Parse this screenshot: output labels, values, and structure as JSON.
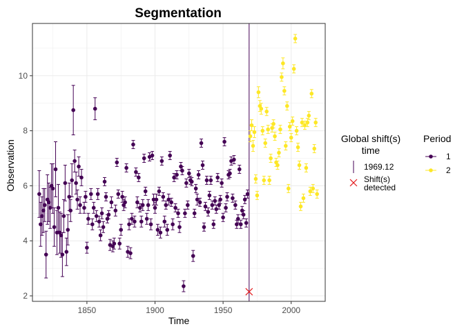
{
  "chart_data": {
    "type": "scatter",
    "title": "Segmentation",
    "xlabel": "Time",
    "ylabel": "Observation",
    "xlim": [
      1810,
      2025
    ],
    "ylim": [
      1.8,
      11.9
    ],
    "x_ticks": [
      1850,
      1900,
      1950,
      2000
    ],
    "y_ticks": [
      2,
      4,
      6,
      8,
      10
    ],
    "grid": true,
    "colors": {
      "period_1": "#440154",
      "period_2": "#FDE725",
      "shift_line": "#440154",
      "shift_marker": "#E31A1C"
    },
    "shift": {
      "time": 1969.12,
      "y": 2.15
    },
    "legend": {
      "shift_title": [
        "Global shift(s)",
        "time"
      ],
      "shift_line_label": "1969.12",
      "shift_marker_label": [
        "Shift(s)",
        "detected"
      ],
      "period_title": "Period",
      "period_labels": [
        "1",
        "2"
      ]
    },
    "series": [
      {
        "name": "1",
        "points": [
          [
            1815,
            5.7,
            0.85
          ],
          [
            1816,
            4.6,
            0.8
          ],
          [
            1817,
            4.9,
            0.7
          ],
          [
            1818,
            5.1,
            0.8
          ],
          [
            1819,
            5.3,
            0.6
          ],
          [
            1820,
            3.5,
            0.85
          ],
          [
            1821,
            5.5,
            0.9
          ],
          [
            1822,
            5.4,
            0.7
          ],
          [
            1823,
            5.2,
            0.75
          ],
          [
            1824,
            6.0,
            0.8
          ],
          [
            1825,
            5.9,
            0.9
          ],
          [
            1826,
            4.5,
            0.7
          ],
          [
            1827,
            6.6,
            1.0
          ],
          [
            1828,
            4.3,
            0.8
          ],
          [
            1829,
            5.2,
            0.85
          ],
          [
            1830,
            4.3,
            0.75
          ],
          [
            1831,
            4.2,
            0.8
          ],
          [
            1832,
            3.5,
            0.8
          ],
          [
            1833,
            4.9,
            0.6
          ],
          [
            1834,
            6.1,
            0.65
          ],
          [
            1835,
            3.6,
            0.5
          ],
          [
            1836,
            4.4,
            0.55
          ],
          [
            1837,
            5.6,
            0.5
          ],
          [
            1838,
            5.1,
            0.4
          ],
          [
            1839,
            6.2,
            0.6
          ],
          [
            1840,
            8.75,
            0.9
          ],
          [
            1841,
            6.9,
            0.4
          ],
          [
            1842,
            6.1,
            0.4
          ],
          [
            1843,
            5.5,
            0.35
          ],
          [
            1844,
            6.7,
            0.35
          ],
          [
            1845,
            5.3,
            0.3
          ],
          [
            1846,
            6.3,
            0.3
          ],
          [
            1848,
            5.2,
            0.2
          ],
          [
            1849,
            5.6,
            0.2
          ],
          [
            1850,
            3.75,
            0.2
          ],
          [
            1851,
            4.8,
            0.2
          ],
          [
            1853,
            5.7,
            0.2
          ],
          [
            1854,
            4.6,
            0.2
          ],
          [
            1855,
            5.2,
            0.2
          ],
          [
            1856,
            8.8,
            0.4
          ],
          [
            1857,
            4.9,
            0.2
          ],
          [
            1858,
            5.7,
            0.2
          ],
          [
            1859,
            4.7,
            0.2
          ],
          [
            1860,
            4.2,
            0.2
          ],
          [
            1861,
            5.0,
            0.2
          ],
          [
            1862,
            4.5,
            0.2
          ],
          [
            1863,
            6.15,
            0.15
          ],
          [
            1864,
            5.6,
            0.15
          ],
          [
            1865,
            4.8,
            0.15
          ],
          [
            1866,
            4.95,
            0.15
          ],
          [
            1867,
            3.85,
            0.2
          ],
          [
            1868,
            5.4,
            0.2
          ],
          [
            1869,
            3.8,
            0.2
          ],
          [
            1870,
            3.9,
            0.2
          ],
          [
            1871,
            5.1,
            0.2
          ],
          [
            1872,
            6.85,
            0.15
          ],
          [
            1873,
            5.7,
            0.15
          ],
          [
            1874,
            3.9,
            0.2
          ],
          [
            1875,
            4.4,
            0.2
          ],
          [
            1876,
            5.6,
            0.2
          ],
          [
            1877,
            5.3,
            0.2
          ],
          [
            1878,
            5.4,
            0.2
          ],
          [
            1879,
            6.65,
            0.15
          ],
          [
            1880,
            3.6,
            0.2
          ],
          [
            1881,
            4.6,
            0.2
          ],
          [
            1882,
            3.55,
            0.2
          ],
          [
            1883,
            4.8,
            0.2
          ],
          [
            1884,
            7.5,
            0.15
          ],
          [
            1885,
            4.7,
            0.2
          ],
          [
            1886,
            6.5,
            0.15
          ],
          [
            1887,
            5.4,
            0.2
          ],
          [
            1888,
            6.3,
            0.15
          ],
          [
            1889,
            5.2,
            0.15
          ],
          [
            1890,
            4.7,
            0.2
          ],
          [
            1891,
            5.3,
            0.2
          ],
          [
            1892,
            7.0,
            0.15
          ],
          [
            1893,
            5.8,
            0.15
          ],
          [
            1894,
            4.8,
            0.2
          ],
          [
            1895,
            5.3,
            0.2
          ],
          [
            1896,
            7.05,
            0.15
          ],
          [
            1897,
            4.6,
            0.2
          ],
          [
            1898,
            7.1,
            0.15
          ],
          [
            1899,
            5.5,
            0.2
          ],
          [
            1900,
            5.2,
            0.2
          ],
          [
            1901,
            5.5,
            0.2
          ],
          [
            1902,
            4.4,
            0.2
          ],
          [
            1903,
            5.8,
            0.15
          ],
          [
            1904,
            4.3,
            0.2
          ],
          [
            1905,
            6.9,
            0.15
          ],
          [
            1906,
            5.6,
            0.15
          ],
          [
            1907,
            4.7,
            0.2
          ],
          [
            1908,
            5.3,
            0.15
          ],
          [
            1909,
            4.4,
            0.2
          ],
          [
            1910,
            5.5,
            0.2
          ],
          [
            1911,
            7.1,
            0.15
          ],
          [
            1912,
            5.4,
            0.15
          ],
          [
            1913,
            4.6,
            0.2
          ],
          [
            1914,
            6.3,
            0.15
          ],
          [
            1915,
            5.2,
            0.15
          ],
          [
            1916,
            6.4,
            0.15
          ],
          [
            1917,
            5.0,
            0.15
          ],
          [
            1918,
            4.5,
            0.2
          ],
          [
            1919,
            6.7,
            0.15
          ],
          [
            1920,
            6.55,
            0.15
          ],
          [
            1921,
            2.35,
            0.2
          ],
          [
            1922,
            5.0,
            0.15
          ],
          [
            1923,
            6.1,
            0.15
          ],
          [
            1924,
            5.3,
            0.15
          ],
          [
            1925,
            6.45,
            0.15
          ],
          [
            1926,
            6.2,
            0.15
          ],
          [
            1927,
            6.15,
            0.15
          ],
          [
            1928,
            3.45,
            0.2
          ],
          [
            1929,
            5.0,
            0.15
          ],
          [
            1930,
            5.9,
            0.15
          ],
          [
            1931,
            5.5,
            0.2
          ],
          [
            1932,
            6.4,
            0.15
          ],
          [
            1933,
            5.4,
            0.15
          ],
          [
            1934,
            7.55,
            0.15
          ],
          [
            1935,
            6.75,
            0.15
          ],
          [
            1936,
            4.5,
            0.15
          ],
          [
            1937,
            5.25,
            0.15
          ],
          [
            1938,
            6.2,
            0.15
          ],
          [
            1939,
            5.05,
            0.15
          ],
          [
            1940,
            5.65,
            0.15
          ],
          [
            1941,
            6.2,
            0.15
          ],
          [
            1942,
            5.3,
            0.15
          ],
          [
            1943,
            4.6,
            0.15
          ],
          [
            1944,
            5.45,
            0.15
          ],
          [
            1945,
            5.15,
            0.15
          ],
          [
            1946,
            6.3,
            0.15
          ],
          [
            1947,
            5.3,
            0.15
          ],
          [
            1948,
            5.5,
            0.15
          ],
          [
            1949,
            6.1,
            0.15
          ],
          [
            1950,
            4.85,
            0.15
          ],
          [
            1951,
            7.6,
            0.15
          ],
          [
            1952,
            5.2,
            0.15
          ],
          [
            1953,
            5.6,
            0.15
          ],
          [
            1954,
            6.4,
            0.15
          ],
          [
            1955,
            6.45,
            0.15
          ],
          [
            1956,
            6.9,
            0.15
          ],
          [
            1957,
            5.55,
            0.15
          ],
          [
            1958,
            6.95,
            0.15
          ],
          [
            1959,
            5.3,
            0.15
          ],
          [
            1960,
            4.6,
            0.15
          ],
          [
            1961,
            4.8,
            0.15
          ],
          [
            1962,
            6.6,
            0.15
          ],
          [
            1963,
            4.6,
            0.15
          ],
          [
            1964,
            5.1,
            0.15
          ],
          [
            1965,
            4.95,
            0.15
          ],
          [
            1966,
            5.5,
            0.15
          ],
          [
            1967,
            4.65,
            0.15
          ],
          [
            1968,
            5.7,
            0.15
          ]
        ]
      },
      {
        "name": "2",
        "points": [
          [
            1970,
            7.8,
            0.2
          ],
          [
            1971,
            8.2,
            0.2
          ],
          [
            1972,
            7.45,
            0.2
          ],
          [
            1973,
            7.95,
            0.2
          ],
          [
            1974,
            6.25,
            0.15
          ],
          [
            1975,
            5.65,
            0.15
          ],
          [
            1976,
            9.4,
            0.2
          ],
          [
            1977,
            8.9,
            0.2
          ],
          [
            1978,
            8.8,
            0.2
          ],
          [
            1979,
            8.0,
            0.15
          ],
          [
            1980,
            6.2,
            0.15
          ],
          [
            1981,
            7.55,
            0.15
          ],
          [
            1982,
            8.7,
            0.15
          ],
          [
            1983,
            8.05,
            0.15
          ],
          [
            1984,
            6.2,
            0.15
          ],
          [
            1985,
            7.0,
            0.15
          ],
          [
            1986,
            8.1,
            0.15
          ],
          [
            1987,
            8.25,
            0.15
          ],
          [
            1988,
            7.8,
            0.15
          ],
          [
            1989,
            6.85,
            0.15
          ],
          [
            1990,
            6.75,
            0.15
          ],
          [
            1991,
            7.2,
            0.15
          ],
          [
            1992,
            8.05,
            0.15
          ],
          [
            1993,
            9.95,
            0.15
          ],
          [
            1994,
            10.45,
            0.2
          ],
          [
            1995,
            9.45,
            0.15
          ],
          [
            1996,
            7.45,
            0.15
          ],
          [
            1997,
            8.9,
            0.15
          ],
          [
            1998,
            5.9,
            0.15
          ],
          [
            1999,
            8.15,
            0.15
          ],
          [
            2000,
            7.75,
            0.15
          ],
          [
            2001,
            8.35,
            0.15
          ],
          [
            2002,
            10.25,
            0.15
          ],
          [
            2003,
            11.35,
            0.15
          ],
          [
            2004,
            8.0,
            0.15
          ],
          [
            2005,
            7.4,
            0.15
          ],
          [
            2006,
            6.75,
            0.15
          ],
          [
            2007,
            5.25,
            0.15
          ],
          [
            2008,
            8.3,
            0.15
          ],
          [
            2009,
            5.55,
            0.15
          ],
          [
            2010,
            8.2,
            0.15
          ],
          [
            2011,
            6.65,
            0.15
          ],
          [
            2012,
            8.3,
            0.15
          ],
          [
            2013,
            8.55,
            0.15
          ],
          [
            2014,
            5.8,
            0.15
          ],
          [
            2015,
            9.35,
            0.15
          ],
          [
            2016,
            5.9,
            0.15
          ],
          [
            2017,
            7.35,
            0.15
          ],
          [
            2018,
            8.3,
            0.15
          ],
          [
            2019,
            5.7,
            0.15
          ]
        ]
      }
    ]
  }
}
